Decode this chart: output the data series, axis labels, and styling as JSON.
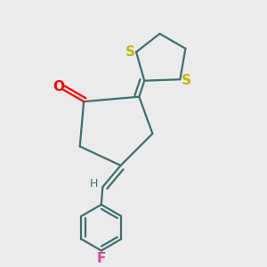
{
  "bg_color": "#ebebeb",
  "bond_color": "#3d7070",
  "s_color": "#c8b400",
  "o_color": "#ff0000",
  "f_color": "#e040a0",
  "h_color": "#3d7070",
  "line_width": 1.6,
  "figsize": [
    3.0,
    3.0
  ],
  "dpi": 100,
  "xlim": [
    0.05,
    0.95
  ],
  "ylim": [
    0.03,
    0.97
  ]
}
